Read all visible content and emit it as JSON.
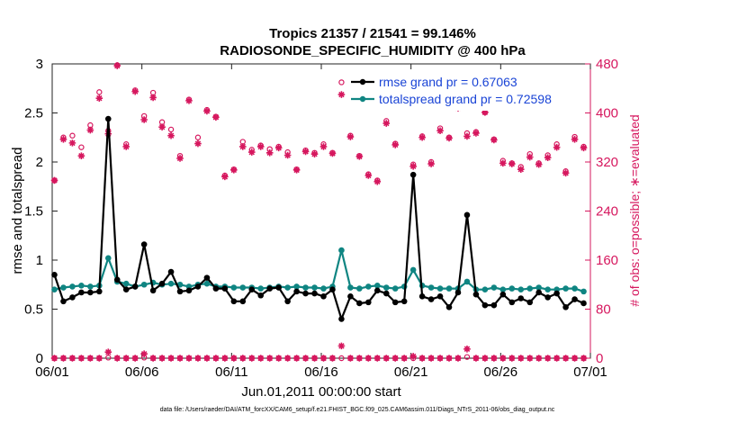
{
  "chart_data": {
    "type": "line",
    "title": "Tropics 21357 / 21541 = 99.146%",
    "subtitle": "RADIOSONDE_SPECIFIC_HUMIDITY @ 400 hPa",
    "xlabel": "Jun.01,2011 00:00:00 start",
    "ylabel": "rmse and totalspread",
    "ylabel_right": "# of obs: o=possible; ∗=evaluated",
    "footnote": "data file: /Users/raeder/DAI/ATM_forcXX/CAM6_setup/f.e21.FHIST_BGC.f09_025.CAM6assim.011/Diags_NTrS_2011-06/obs_diag_output.nc",
    "xlim": [
      0,
      30
    ],
    "ylim": [
      0,
      3
    ],
    "ylim_right": [
      0,
      480
    ],
    "x_tick_labels": [
      "06/01",
      "06/06",
      "06/11",
      "06/16",
      "06/21",
      "06/26",
      "07/01"
    ],
    "x_tick_values": [
      0,
      5,
      10,
      15,
      20,
      25,
      30
    ],
    "y_ticks": [
      "0",
      "0.5",
      "1",
      "1.5",
      "2",
      "2.5",
      "3"
    ],
    "y_tick_values": [
      0,
      0.5,
      1,
      1.5,
      2,
      2.5,
      3
    ],
    "y_right_ticks": [
      "0",
      "80",
      "160",
      "240",
      "320",
      "400",
      "480"
    ],
    "y_right_tick_values": [
      0,
      80,
      160,
      240,
      320,
      400,
      480
    ],
    "x": [
      0.125,
      0.625,
      1.125,
      1.625,
      2.125,
      2.625,
      3.125,
      3.625,
      4.125,
      4.625,
      5.125,
      5.625,
      6.125,
      6.625,
      7.125,
      7.625,
      8.125,
      8.625,
      9.125,
      9.625,
      10.125,
      10.625,
      11.125,
      11.625,
      12.125,
      12.625,
      13.125,
      13.625,
      14.125,
      14.625,
      15.125,
      15.625,
      16.125,
      16.625,
      17.125,
      17.625,
      18.125,
      18.625,
      19.125,
      19.625,
      20.125,
      20.625,
      21.125,
      21.625,
      22.125,
      22.625,
      23.125,
      23.625,
      24.125,
      24.625,
      25.125,
      25.625,
      26.125,
      26.625,
      27.125,
      27.625,
      28.125,
      28.625,
      29.125,
      29.625
    ],
    "series": [
      {
        "name": "rmse grand pr = 0.67063",
        "color": "#000000",
        "values": [
          0.85,
          0.58,
          0.62,
          0.67,
          0.67,
          0.68,
          2.44,
          0.8,
          0.7,
          0.73,
          1.16,
          0.69,
          0.76,
          0.88,
          0.68,
          0.69,
          0.73,
          0.82,
          0.71,
          0.71,
          0.58,
          0.58,
          0.7,
          0.64,
          0.71,
          0.72,
          0.58,
          0.68,
          0.66,
          0.66,
          0.63,
          0.7,
          0.4,
          0.63,
          0.56,
          0.57,
          0.69,
          0.66,
          0.57,
          0.58,
          1.87,
          0.63,
          0.6,
          0.63,
          0.52,
          0.67,
          1.46,
          0.65,
          0.54,
          0.54,
          0.65,
          0.57,
          0.61,
          0.57,
          0.67,
          0.62,
          0.66,
          0.52,
          0.6,
          0.56
        ]
      },
      {
        "name": "totalspread grand pr = 0.72598",
        "color": "#0f8582",
        "values": [
          0.7,
          0.72,
          0.73,
          0.74,
          0.73,
          0.74,
          1.02,
          0.78,
          0.76,
          0.73,
          0.75,
          0.77,
          0.75,
          0.76,
          0.75,
          0.73,
          0.75,
          0.76,
          0.73,
          0.73,
          0.72,
          0.72,
          0.72,
          0.71,
          0.72,
          0.73,
          0.72,
          0.73,
          0.72,
          0.72,
          0.71,
          0.73,
          1.1,
          0.72,
          0.71,
          0.73,
          0.74,
          0.72,
          0.71,
          0.73,
          0.9,
          0.74,
          0.72,
          0.71,
          0.71,
          0.71,
          0.78,
          0.7,
          0.7,
          0.72,
          0.7,
          0.71,
          0.7,
          0.71,
          0.72,
          0.7,
          0.7,
          0.71,
          0.71,
          0.68
        ]
      }
    ],
    "obs_possible": {
      "name": "possible (o)",
      "color": "#d6175e",
      "values": [
        290,
        360,
        363,
        344,
        380,
        434,
        371,
        478,
        349,
        437,
        395,
        433,
        385,
        373,
        330,
        422,
        360,
        405,
        394,
        298,
        308,
        353,
        340,
        347,
        341,
        345,
        336,
        308,
        339,
        335,
        349,
        335,
        450,
        363,
        330,
        300,
        290,
        387,
        350,
        429,
        316,
        362,
        320,
        375,
        360,
        411,
        367,
        369,
        401,
        357,
        322,
        318,
        312,
        333,
        318,
        331,
        349,
        305,
        361,
        345
      ]
    },
    "obs_evaluated": {
      "name": "evaluated (∗)",
      "color": "#d6175e",
      "values": [
        290,
        357,
        351,
        330,
        372,
        424,
        366,
        477,
        345,
        435,
        389,
        425,
        377,
        363,
        326,
        420,
        350,
        403,
        393,
        296,
        307,
        345,
        336,
        345,
        335,
        343,
        331,
        307,
        337,
        333,
        345,
        334,
        430,
        361,
        329,
        298,
        288,
        383,
        348,
        424,
        313,
        360,
        317,
        371,
        359,
        408,
        362,
        367,
        401,
        356,
        318,
        317,
        308,
        328,
        316,
        327,
        344,
        302,
        357,
        343
      ]
    },
    "obs_zero_possible": [
      0,
      0,
      0,
      0,
      0,
      0,
      1,
      0,
      0,
      0,
      1,
      0,
      0,
      0,
      0,
      0,
      0,
      0,
      0,
      0,
      0,
      0,
      0,
      0,
      0,
      0,
      0,
      0,
      0,
      0,
      0,
      0,
      0,
      0,
      0,
      0,
      0,
      0,
      0,
      0,
      0,
      0,
      0,
      0,
      0,
      0,
      2,
      0,
      0,
      0,
      0,
      0,
      0,
      0,
      0,
      0,
      0,
      0,
      0,
      0
    ],
    "obs_rejected": [
      0,
      0,
      0,
      0,
      0,
      0,
      10,
      0,
      0,
      0,
      7,
      0,
      0,
      0,
      0,
      0,
      0,
      0,
      0,
      0,
      0,
      0,
      0,
      0,
      0,
      0,
      0,
      0,
      0,
      0,
      0,
      0,
      20,
      0,
      0,
      0,
      0,
      0,
      0,
      0,
      3,
      0,
      0,
      0,
      0,
      0,
      15,
      0,
      0,
      0,
      0,
      0,
      0,
      0,
      0,
      0,
      0,
      0,
      0,
      0
    ],
    "legend": {
      "position": "top-right",
      "entries": [
        "rmse grand pr = 0.67063",
        "totalspread grand pr = 0.72598"
      ]
    },
    "grid": false
  }
}
